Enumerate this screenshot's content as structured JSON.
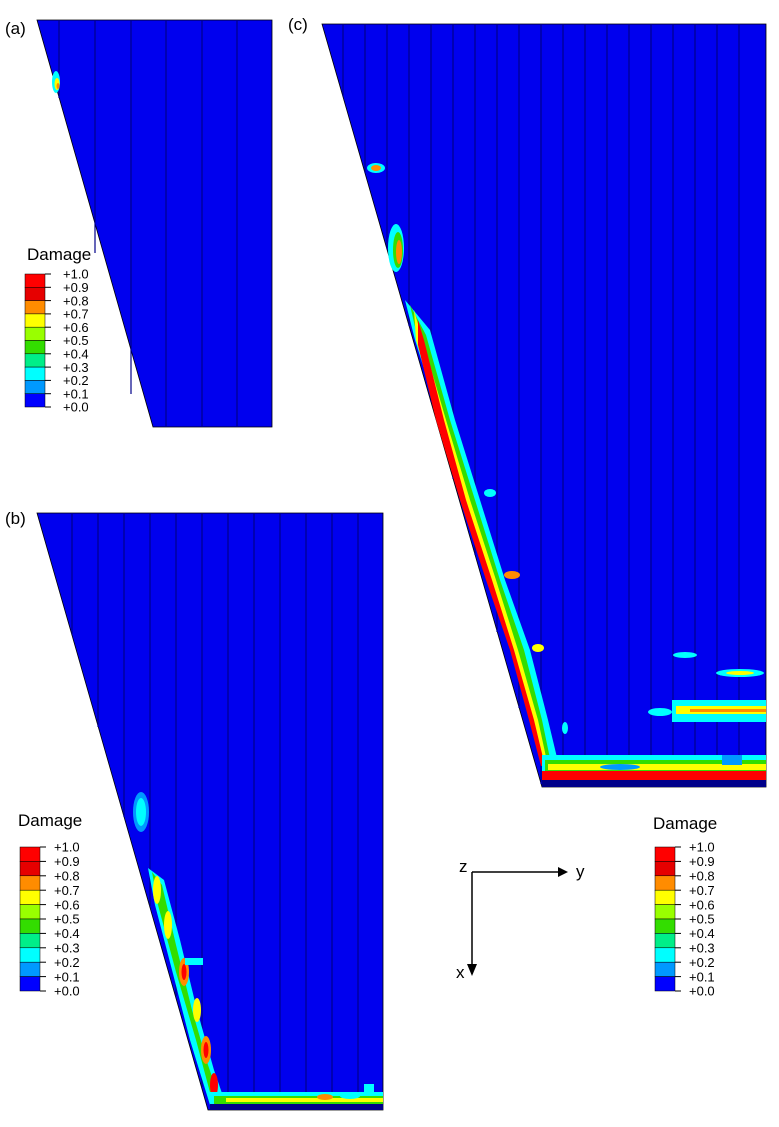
{
  "panels": {
    "a": {
      "label": "(a)"
    },
    "b": {
      "label": "(b)"
    },
    "c": {
      "label": "(c)"
    }
  },
  "legend": {
    "title": "Damage",
    "ticks": [
      "+1.0",
      "+0.9",
      "+0.8",
      "+0.7",
      "+0.6",
      "+0.5",
      "+0.4",
      "+0.3",
      "+0.2",
      "+0.1",
      "+0.0"
    ],
    "colors": [
      "#ff0000",
      "#e60000",
      "#ff8c00",
      "#ffff00",
      "#99ff00",
      "#33dd00",
      "#00ee88",
      "#00ffff",
      "#0099ff",
      "#0000ff"
    ]
  },
  "axes": {
    "origin": "z",
    "horizontal": "y",
    "vertical": "x"
  },
  "colors": {
    "mesh_blue": "#0000ee",
    "mesh_line": "#00008a",
    "damage_red": "#ff0000",
    "damage_orange": "#ff8c00",
    "damage_yellow": "#ffff00",
    "damage_green": "#33dd00",
    "damage_cyan": "#00ffff",
    "damage_lightblue": "#0099ff"
  }
}
